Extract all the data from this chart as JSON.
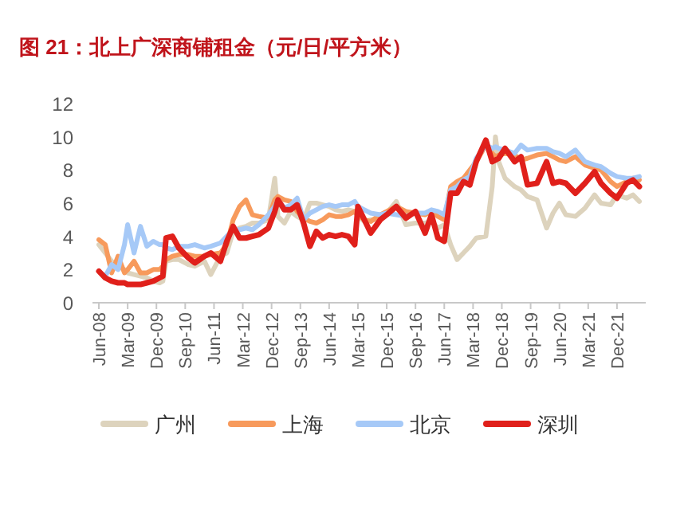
{
  "chart_data": {
    "type": "line",
    "title": "图 21：北上广深商铺租金（元/日/平方米）",
    "x": [
      "2008-06",
      "2008-08",
      "2008-10",
      "2008-12",
      "2009-02",
      "2009-03",
      "2009-05",
      "2009-07",
      "2009-09",
      "2009-11",
      "2010-01",
      "2010-02",
      "2010-03",
      "2010-05",
      "2010-07",
      "2010-10",
      "2010-12",
      "2011-03",
      "2011-05",
      "2011-08",
      "2011-10",
      "2011-12",
      "2012-02",
      "2012-04",
      "2012-06",
      "2012-08",
      "2012-11",
      "2013-01",
      "2013-02",
      "2013-04",
      "2013-06",
      "2013-08",
      "2013-10",
      "2013-12",
      "2014-02",
      "2014-04",
      "2014-06",
      "2014-08",
      "2014-10",
      "2014-12",
      "2015-02",
      "2015-03",
      "2015-05",
      "2015-07",
      "2015-10",
      "2015-12",
      "2016-03",
      "2016-06",
      "2016-09",
      "2016-12",
      "2017-02",
      "2017-04",
      "2017-06",
      "2017-08",
      "2017-10",
      "2017-12",
      "2018-02",
      "2018-04",
      "2018-07",
      "2018-09",
      "2018-10",
      "2018-11",
      "2019-01",
      "2019-04",
      "2019-06",
      "2019-08",
      "2019-11",
      "2020-02",
      "2020-04",
      "2020-06",
      "2020-08",
      "2020-11",
      "2021-02",
      "2021-05",
      "2021-07",
      "2021-10",
      "2021-12",
      "2022-03",
      "2022-05",
      "2022-07"
    ],
    "series": [
      {
        "name": "广州",
        "color": "#ddd3bd",
        "values": [
          3.5,
          3.0,
          2.5,
          2.2,
          2.0,
          1.8,
          1.7,
          1.6,
          1.5,
          1.3,
          1.2,
          1.3,
          2.5,
          2.6,
          2.6,
          2.3,
          2.2,
          2.5,
          1.7,
          2.8,
          3.0,
          4.3,
          4.5,
          4.6,
          4.8,
          4.8,
          5.0,
          7.5,
          5.2,
          4.8,
          5.5,
          5.2,
          5.0,
          6.0,
          6.0,
          5.9,
          5.8,
          5.6,
          5.5,
          5.6,
          5.5,
          5.2,
          4.9,
          5.0,
          5.0,
          5.4,
          6.1,
          4.7,
          4.8,
          4.8,
          4.9,
          4.5,
          4.7,
          3.5,
          2.6,
          3.0,
          3.4,
          3.9,
          4.0,
          7.0,
          10.0,
          8.5,
          7.5,
          7.0,
          6.8,
          6.4,
          6.2,
          4.5,
          5.4,
          6.0,
          5.3,
          5.2,
          5.7,
          6.5,
          6.0,
          5.9,
          6.5,
          6.3,
          6.5,
          6.1
        ]
      },
      {
        "name": "上海",
        "color": "#f79a5c",
        "values": [
          3.8,
          3.5,
          1.8,
          2.8,
          1.8,
          2.0,
          2.5,
          1.8,
          1.8,
          2.0,
          2.0,
          2.2,
          2.6,
          2.8,
          2.9,
          2.9,
          2.8,
          2.8,
          2.9,
          3.0,
          3.5,
          5.0,
          5.8,
          6.2,
          5.3,
          5.2,
          5.1,
          6.2,
          6.4,
          6.2,
          6.1,
          5.5,
          5.1,
          4.9,
          4.8,
          5.0,
          5.3,
          5.2,
          5.2,
          5.3,
          5.5,
          5.3,
          5.0,
          4.9,
          5.3,
          5.5,
          5.8,
          5.5,
          5.4,
          5.3,
          5.5,
          5.2,
          5.0,
          7.0,
          7.3,
          7.5,
          8.0,
          8.5,
          9.5,
          9.0,
          8.8,
          8.9,
          9.0,
          8.9,
          8.6,
          8.7,
          8.9,
          9.0,
          8.8,
          8.6,
          8.5,
          8.8,
          8.3,
          8.1,
          8.0,
          7.3,
          7.0,
          7.3,
          7.5,
          7.4
        ]
      },
      {
        "name": "北京",
        "color": "#a6c9f7",
        "values": [
          null,
          1.6,
          2.3,
          2.0,
          3.5,
          4.7,
          3.0,
          4.6,
          3.4,
          3.7,
          3.5,
          3.5,
          3.3,
          3.2,
          3.4,
          3.4,
          3.5,
          3.3,
          3.4,
          3.6,
          4.0,
          4.4,
          4.4,
          4.5,
          4.4,
          4.7,
          5.3,
          5.8,
          6.2,
          5.7,
          5.9,
          6.3,
          5.0,
          5.4,
          5.6,
          5.8,
          5.9,
          5.8,
          5.9,
          5.9,
          6.1,
          5.8,
          5.6,
          5.4,
          5.3,
          5.4,
          5.3,
          5.2,
          5.4,
          5.4,
          5.6,
          5.5,
          5.3,
          6.8,
          7.0,
          7.4,
          7.6,
          8.7,
          9.5,
          9.3,
          9.4,
          9.3,
          9.2,
          9.0,
          9.5,
          9.2,
          9.3,
          9.3,
          9.1,
          9.0,
          8.8,
          9.2,
          8.5,
          8.3,
          8.2,
          7.8,
          7.6,
          7.5,
          7.5,
          7.6
        ]
      },
      {
        "name": "深圳",
        "color": "#e0201b",
        "values": [
          1.9,
          1.5,
          1.3,
          1.2,
          1.2,
          1.1,
          1.1,
          1.1,
          1.2,
          1.3,
          1.5,
          1.6,
          3.9,
          4.0,
          3.3,
          2.7,
          2.4,
          2.8,
          3.0,
          2.5,
          3.7,
          4.6,
          3.9,
          3.9,
          4.0,
          4.1,
          4.5,
          5.5,
          6.2,
          5.6,
          5.6,
          5.9,
          4.8,
          3.4,
          4.3,
          3.9,
          4.1,
          4.0,
          4.1,
          4.0,
          3.5,
          5.8,
          5.0,
          4.2,
          5.0,
          5.3,
          5.8,
          5.1,
          5.5,
          4.2,
          5.3,
          3.9,
          3.7,
          6.6,
          6.6,
          7.3,
          7.1,
          8.5,
          9.8,
          8.5,
          8.6,
          8.7,
          9.3,
          8.5,
          8.8,
          7.1,
          7.2,
          8.5,
          7.2,
          7.3,
          7.2,
          6.6,
          7.2,
          7.9,
          7.2,
          6.6,
          6.3,
          7.2,
          7.4,
          7.0
        ]
      }
    ],
    "xlim": [
      "2008-04",
      "2022-09"
    ],
    "xticks": [
      {
        "value": "2008-06",
        "label": "Jun-08"
      },
      {
        "value": "2009-03",
        "label": "Mar-09"
      },
      {
        "value": "2009-12",
        "label": "Dec-09"
      },
      {
        "value": "2010-09",
        "label": "Sep-10"
      },
      {
        "value": "2011-06",
        "label": "Jun-11"
      },
      {
        "value": "2012-03",
        "label": "Mar-12"
      },
      {
        "value": "2012-12",
        "label": "Dec-12"
      },
      {
        "value": "2013-09",
        "label": "Sep-13"
      },
      {
        "value": "2014-06",
        "label": "Jun-14"
      },
      {
        "value": "2015-03",
        "label": "Mar-15"
      },
      {
        "value": "2015-12",
        "label": "Dec-15"
      },
      {
        "value": "2016-09",
        "label": "Sep-16"
      },
      {
        "value": "2017-06",
        "label": "Jun-17"
      },
      {
        "value": "2018-03",
        "label": "Mar-18"
      },
      {
        "value": "2018-12",
        "label": "Dec-18"
      },
      {
        "value": "2019-09",
        "label": "Sep-19"
      },
      {
        "value": "2020-06",
        "label": "Jun-20"
      },
      {
        "value": "2021-03",
        "label": "Mar-21"
      },
      {
        "value": "2021-12",
        "label": "Dec-21"
      }
    ],
    "ylim": [
      0,
      12
    ],
    "yticks": [
      0,
      2,
      4,
      6,
      8,
      10,
      12
    ],
    "legend": "bottom",
    "line_style": "solid"
  }
}
